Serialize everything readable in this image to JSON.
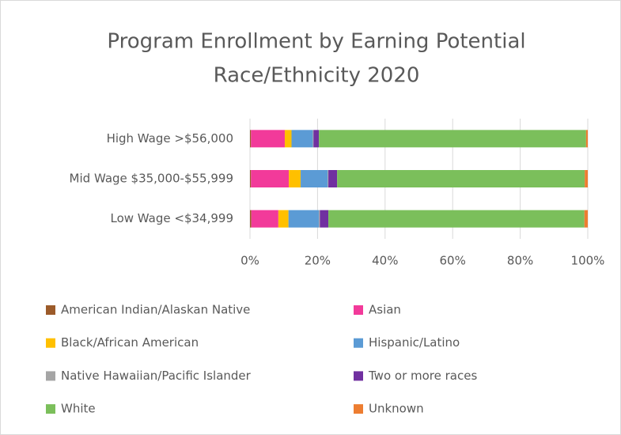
{
  "chart_data": {
    "type": "stacked_barh",
    "title": [
      "Program Enrollment by Earning Potential",
      "Race/Ethnicity 2020"
    ],
    "categories": [
      "High Wage >$56,000",
      "Mid Wage $35,000-$55,999",
      "Low Wage <$34,999"
    ],
    "series": [
      {
        "name": "American Indian/Alaskan Native",
        "color": "#9c5b2a",
        "values": [
          0.3,
          0.3,
          0.4
        ]
      },
      {
        "name": "Asian",
        "color": "#f23a9a",
        "values": [
          10,
          11.2,
          8
        ]
      },
      {
        "name": "Black/African American",
        "color": "#ffc000",
        "values": [
          2,
          3.5,
          3
        ]
      },
      {
        "name": "Hispanic/Latino",
        "color": "#5b9bd5",
        "values": [
          6.3,
          8,
          9
        ]
      },
      {
        "name": "Native Hawaiian/Pacific Islander",
        "color": "#a5a5a5",
        "values": [
          0.2,
          0.2,
          0.3
        ]
      },
      {
        "name": "Two or more races",
        "color": "#7030a0",
        "values": [
          1.6,
          2.6,
          2.5
        ]
      },
      {
        "name": "White",
        "color": "#7bbf5b",
        "values": [
          79.1,
          73.3,
          75.8
        ]
      },
      {
        "name": "Unknown",
        "color": "#ed7d31",
        "values": [
          0.5,
          0.9,
          1
        ]
      }
    ],
    "xlim": [
      0,
      100
    ],
    "xticks": [
      {
        "value": 0,
        "label": "0%"
      },
      {
        "value": 20,
        "label": "20%"
      },
      {
        "value": 40,
        "label": "40%"
      },
      {
        "value": 60,
        "label": "60%"
      },
      {
        "value": 80,
        "label": "80%"
      },
      {
        "value": 100,
        "label": "100%"
      }
    ],
    "grid": true,
    "legend": "bottom"
  }
}
